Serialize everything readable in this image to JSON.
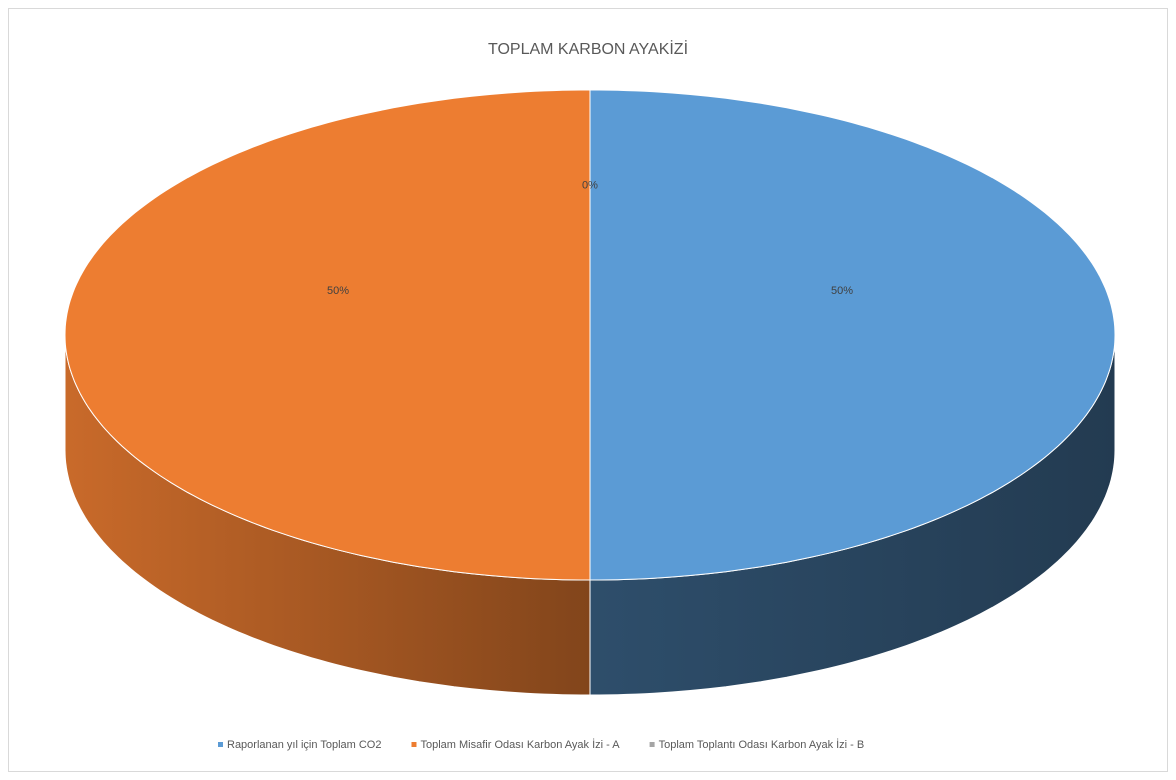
{
  "chart_data": {
    "type": "pie",
    "title": "TOPLAM KARBON AYAKİZİ",
    "categories": [
      "Raporlanan yıl için Toplam CO2",
      "Toplam Misafir Odası Karbon Ayak İzi - A",
      "Toplam Toplantı Odası Karbon Ayak İzi - B"
    ],
    "values": [
      50,
      50,
      0
    ],
    "value_labels": [
      "50%",
      "50%",
      "0%"
    ],
    "colors": [
      "#5b9bd5",
      "#ed7d31",
      "#a5a5a5"
    ]
  }
}
